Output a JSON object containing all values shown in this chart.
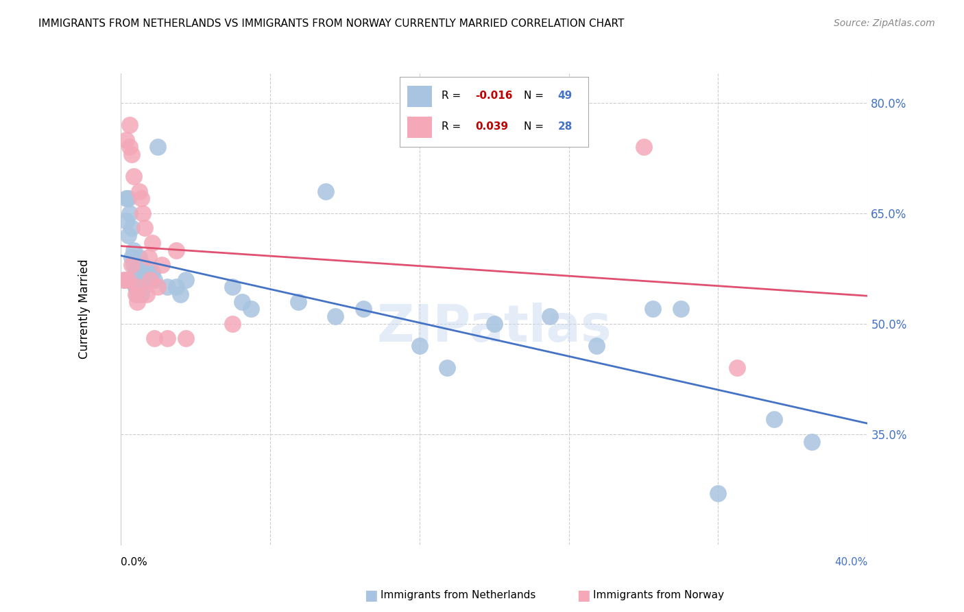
{
  "title": "IMMIGRANTS FROM NETHERLANDS VS IMMIGRANTS FROM NORWAY CURRENTLY MARRIED CORRELATION CHART",
  "source": "Source: ZipAtlas.com",
  "ylabel": "Currently Married",
  "xlim": [
    0.0,
    0.4
  ],
  "ylim": [
    0.2,
    0.84
  ],
  "yticks": [
    0.35,
    0.5,
    0.65,
    0.8
  ],
  "ytick_labels": [
    "35.0%",
    "50.0%",
    "65.0%",
    "80.0%"
  ],
  "xtick_vals": [
    0.0,
    0.08,
    0.16,
    0.24,
    0.32,
    0.4
  ],
  "blue_color": "#a8c4e0",
  "pink_color": "#f4a8b8",
  "blue_line_color": "#4472c4",
  "pink_line_color": "#e05070",
  "nl_x": [
    0.002,
    0.003,
    0.003,
    0.004,
    0.004,
    0.005,
    0.006,
    0.006,
    0.007,
    0.007,
    0.007,
    0.008,
    0.008,
    0.008,
    0.009,
    0.009,
    0.01,
    0.01,
    0.011,
    0.011,
    0.012,
    0.012,
    0.013,
    0.014,
    0.015,
    0.017,
    0.018,
    0.02,
    0.025,
    0.03,
    0.032,
    0.035,
    0.06,
    0.065,
    0.07,
    0.095,
    0.11,
    0.115,
    0.13,
    0.16,
    0.175,
    0.2,
    0.23,
    0.255,
    0.285,
    0.3,
    0.32,
    0.35,
    0.37
  ],
  "nl_y": [
    0.56,
    0.67,
    0.64,
    0.62,
    0.67,
    0.65,
    0.63,
    0.59,
    0.58,
    0.56,
    0.6,
    0.55,
    0.57,
    0.55,
    0.54,
    0.56,
    0.59,
    0.56,
    0.54,
    0.57,
    0.55,
    0.58,
    0.56,
    0.57,
    0.57,
    0.57,
    0.56,
    0.74,
    0.55,
    0.55,
    0.54,
    0.56,
    0.55,
    0.53,
    0.52,
    0.53,
    0.68,
    0.51,
    0.52,
    0.47,
    0.44,
    0.5,
    0.51,
    0.47,
    0.52,
    0.52,
    0.27,
    0.37,
    0.34
  ],
  "no_x": [
    0.002,
    0.003,
    0.004,
    0.005,
    0.005,
    0.006,
    0.006,
    0.007,
    0.008,
    0.009,
    0.009,
    0.01,
    0.011,
    0.012,
    0.013,
    0.014,
    0.015,
    0.016,
    0.017,
    0.018,
    0.02,
    0.022,
    0.025,
    0.03,
    0.035,
    0.06,
    0.28,
    0.33
  ],
  "no_y": [
    0.56,
    0.75,
    0.56,
    0.74,
    0.77,
    0.73,
    0.58,
    0.7,
    0.54,
    0.55,
    0.53,
    0.68,
    0.67,
    0.65,
    0.63,
    0.54,
    0.59,
    0.56,
    0.61,
    0.48,
    0.55,
    0.58,
    0.48,
    0.6,
    0.48,
    0.5,
    0.74,
    0.44
  ]
}
